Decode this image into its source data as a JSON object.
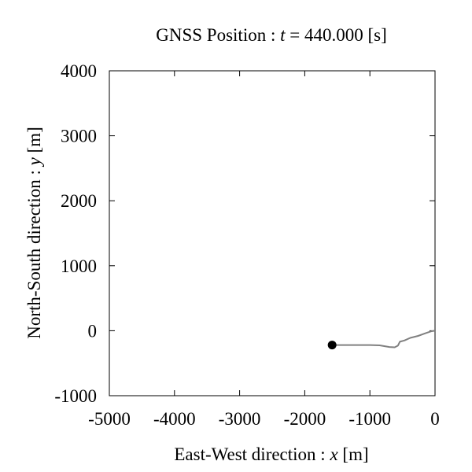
{
  "chart_data": {
    "type": "line",
    "title_prefix": "GNSS Position : ",
    "title_var": "t",
    "title_suffix": " = 440.000 [s]",
    "xlabel_prefix": "East-West direction : ",
    "xlabel_var": "x",
    "xlabel_suffix": "  [m]",
    "ylabel_prefix": "North-South direction : ",
    "ylabel_var": "y",
    "ylabel_suffix": "  [m]",
    "xlim": [
      -5000,
      0
    ],
    "ylim": [
      -1000,
      4000
    ],
    "xticks": [
      "-5000",
      "-4000",
      "-3000",
      "-2000",
      "-1000",
      "0"
    ],
    "yticks": [
      "-1000",
      "0",
      "1000",
      "2000",
      "3000",
      "4000"
    ],
    "grid": false,
    "series": [
      {
        "color": "#808080",
        "x": [
          0,
          -60,
          -150,
          -260,
          -380,
          -470,
          -540,
          -570,
          -620,
          -700,
          -850,
          -1000,
          -1200,
          -1400,
          -1580
        ],
        "y": [
          0,
          -10,
          -40,
          -80,
          -110,
          -150,
          -170,
          -230,
          -255,
          -250,
          -225,
          -220,
          -220,
          -220,
          -220
        ]
      }
    ],
    "current_position": {
      "x": -1580,
      "y": -220,
      "color": "#000000"
    }
  }
}
